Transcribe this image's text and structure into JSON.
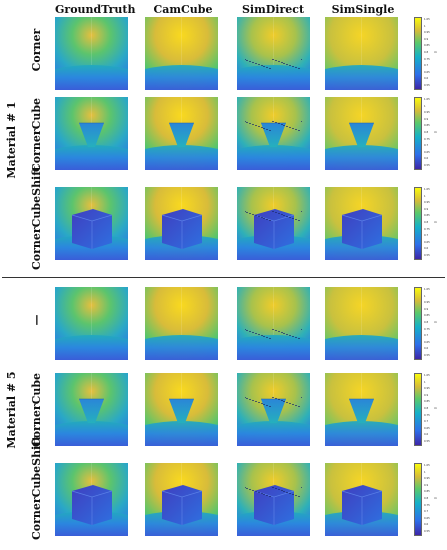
{
  "columns": [
    "GroundTruth",
    "CamCube",
    "SimDirect",
    "SimSingle"
  ],
  "groups": [
    {
      "label": "Material # 1",
      "rows": [
        "Corner",
        "CornerCube",
        "CornerCubeShift"
      ]
    },
    {
      "label": "Material # 5",
      "rows": [
        "—",
        "CornerCube",
        "CornerCubeShift"
      ]
    }
  ],
  "colorbar": {
    "unit": "m",
    "ticks": [
      "1.05",
      "1",
      "0.95",
      "0.9",
      "0.85",
      "0.8",
      "0.75",
      "0.7",
      "0.65",
      "0.6",
      "0.55"
    ]
  },
  "colors": {
    "low": "#3e26a8",
    "mid_blue": "#2d6ee8",
    "cyan": "#15b0c8",
    "green": "#5bc86a",
    "high": "#f9fb0e"
  }
}
